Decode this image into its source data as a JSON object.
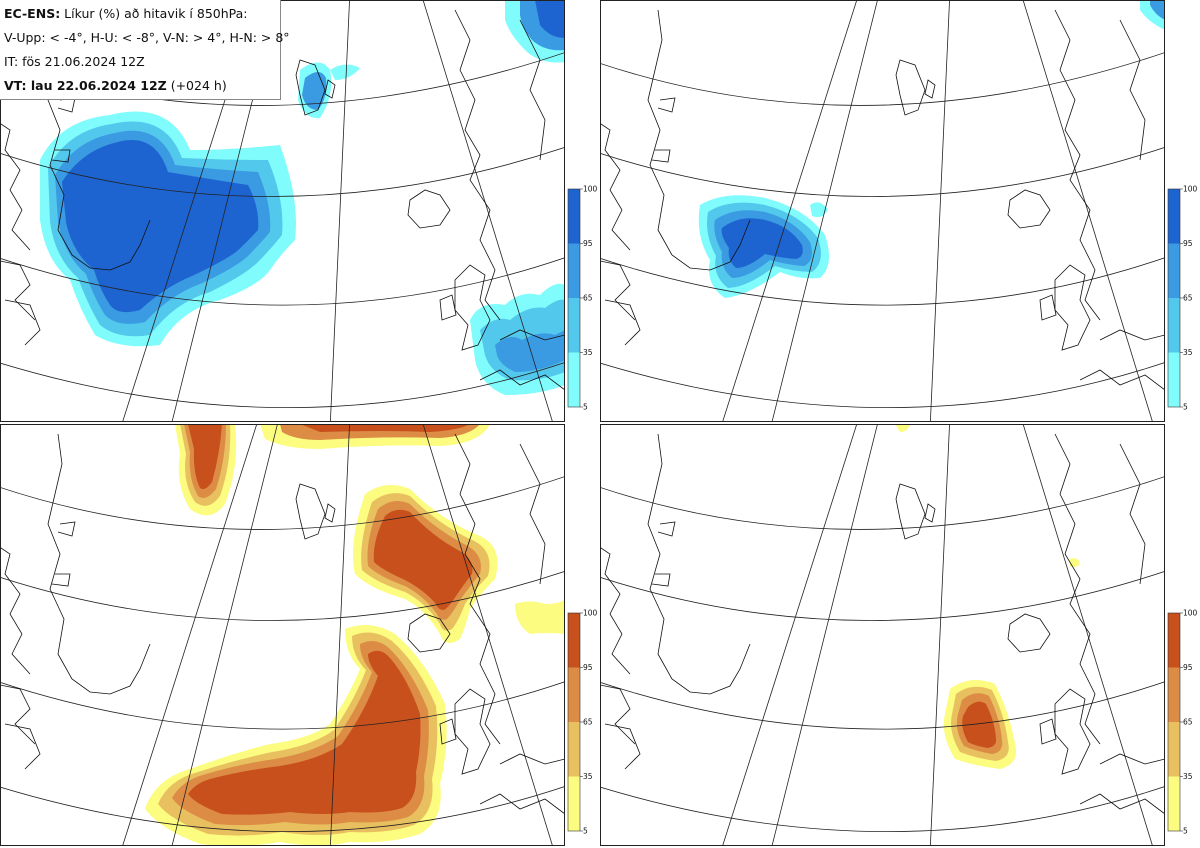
{
  "header": {
    "line1_bold": "EC-ENS:",
    "line1_rest": " Líkur (%) að hitavik í 850hPa:",
    "line2": "V-Upp: < -4°, H-U: < -8°, V-N: > 4°, H-N: > 8°",
    "line3": "IT: fös 21.06.2024 12Z",
    "line4_bold": "VT: lau 22.06.2024 12Z",
    "line4_rest": " (+024 h)"
  },
  "panels": [
    {
      "id": "V-Upp",
      "scheme": "blue"
    },
    {
      "id": "H-U",
      "scheme": "blue"
    },
    {
      "id": "V-N",
      "scheme": "warm"
    },
    {
      "id": "H-N",
      "scheme": "warm"
    }
  ],
  "colorbar": {
    "ticks": [
      "5",
      "35",
      "65",
      "95",
      "100"
    ],
    "blue_colors": [
      "#80fcfc",
      "#52c8ec",
      "#3a9ae2",
      "#1e64d0"
    ],
    "warm_colors": [
      "#fcfc80",
      "#e8c060",
      "#dc8c44",
      "#c8501c"
    ]
  }
}
